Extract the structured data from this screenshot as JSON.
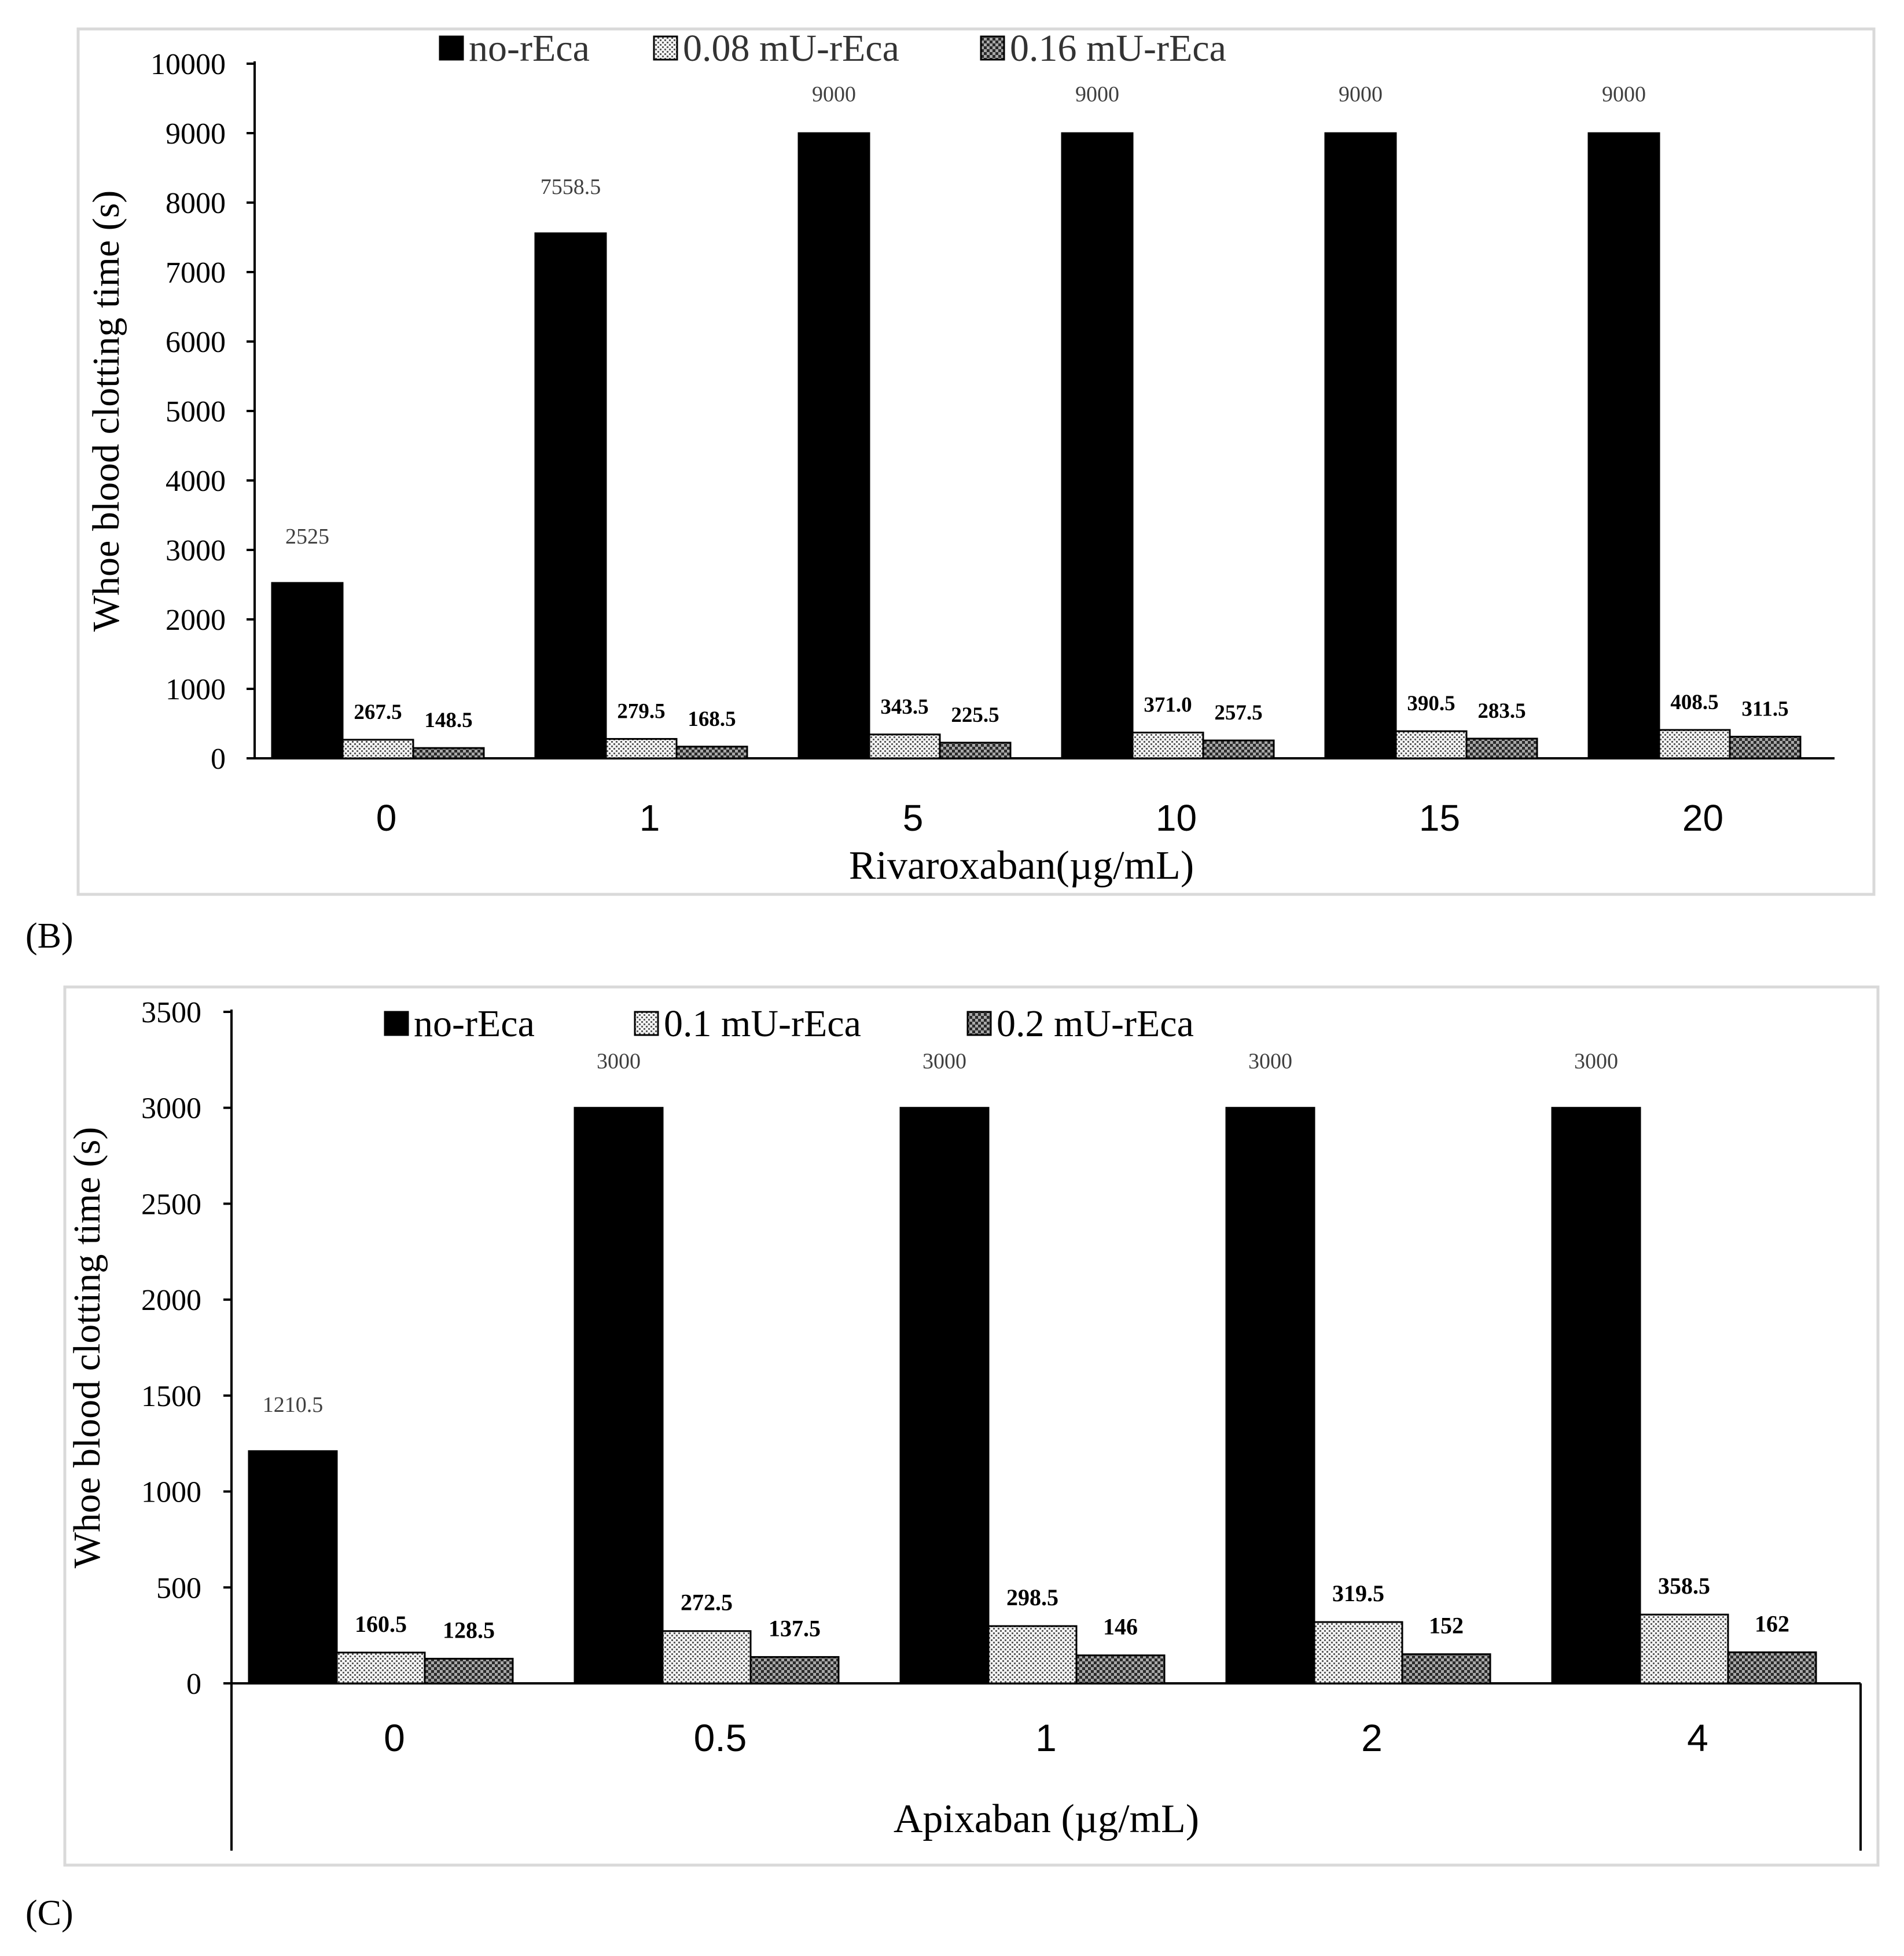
{
  "panels": {
    "b_label": "(B)",
    "c_label": "(C)"
  },
  "colors": {
    "bar_dark": "#000000",
    "frame": "#d9d9d9",
    "value_label_thin": "#404040"
  },
  "chart_data": [
    {
      "type": "bar",
      "xlabel": "Rivaroxaban(µg/mL)",
      "ylabel": "Whoe blood clotting time (s)",
      "ylim": [
        0,
        10000
      ],
      "yticks": [
        0,
        1000,
        2000,
        3000,
        4000,
        5000,
        6000,
        7000,
        8000,
        9000,
        10000
      ],
      "legend_position": "top",
      "categories": [
        "0",
        "1",
        "5",
        "10",
        "15",
        "20"
      ],
      "series": [
        {
          "name": "no-rEca",
          "pattern": "solid",
          "values": [
            2525,
            7558.5,
            9000,
            9000,
            9000,
            9000
          ],
          "labels": [
            "2525",
            "7558.5",
            "9000",
            "9000",
            "9000",
            "9000"
          ]
        },
        {
          "name": "0.08 mU-rEca",
          "pattern": "dots",
          "values": [
            267.5,
            279.5,
            343.5,
            371.0,
            390.5,
            408.5
          ],
          "labels": [
            "267.5",
            "279.5",
            "343.5",
            "371.0",
            "390.5",
            "408.5"
          ]
        },
        {
          "name": "0.16 mU-rEca",
          "pattern": "checker",
          "values": [
            148.5,
            168.5,
            225.5,
            257.5,
            283.5,
            311.5
          ],
          "labels": [
            "148.5",
            "168.5",
            "225.5",
            "257.5",
            "283.5",
            "311.5"
          ]
        }
      ]
    },
    {
      "type": "bar",
      "xlabel": "Apixaban (µg/mL)",
      "ylabel": "Whoe blood clotting time (s)",
      "ylim": [
        0,
        3500
      ],
      "yticks": [
        0,
        500,
        1000,
        1500,
        2000,
        2500,
        3000,
        3500
      ],
      "legend_position": "top",
      "categories": [
        "0",
        "0.5",
        "1",
        "2",
        "4"
      ],
      "series": [
        {
          "name": "no-rEca",
          "pattern": "solid",
          "values": [
            1210.5,
            3000,
            3000,
            3000,
            3000
          ],
          "labels": [
            "1210.5",
            "3000",
            "3000",
            "3000",
            "3000"
          ]
        },
        {
          "name": "0.1 mU-rEca",
          "pattern": "dots",
          "values": [
            160.5,
            272.5,
            298.5,
            319.5,
            358.5
          ],
          "labels": [
            "160.5",
            "272.5",
            "298.5",
            "319.5",
            "358.5"
          ]
        },
        {
          "name": "0.2 mU-rEca",
          "pattern": "checker",
          "values": [
            128.5,
            137.5,
            146,
            152,
            162
          ],
          "labels": [
            "128.5",
            "137.5",
            "146",
            "152",
            "162"
          ]
        }
      ]
    }
  ]
}
